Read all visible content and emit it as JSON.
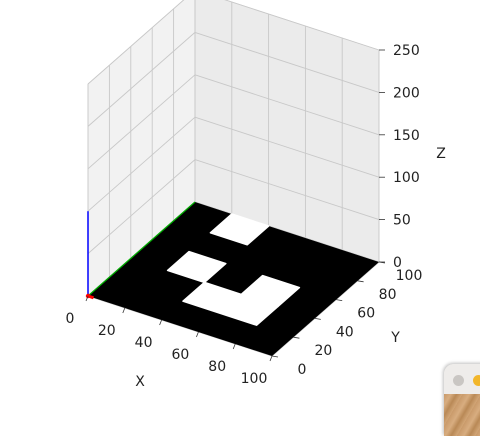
{
  "chart_data": {
    "type": "3d-surface-image",
    "xlabel": "X",
    "ylabel": "Y",
    "zlabel": "Z",
    "xlim": [
      0,
      100
    ],
    "ylim": [
      0,
      100
    ],
    "zlim": [
      0,
      250
    ],
    "xticks": [
      "0",
      "20",
      "40",
      "60",
      "80",
      "100"
    ],
    "yticks": [
      "0",
      "20",
      "40",
      "60",
      "80",
      "100"
    ],
    "zticks": [
      "0",
      "50",
      "100",
      "150",
      "200",
      "250"
    ],
    "grid": true,
    "image_plane": {
      "z": 0,
      "x_range": [
        0,
        100
      ],
      "y_range": [
        0,
        100
      ],
      "color": "#000000",
      "white_regions": [
        {
          "x": [
            20,
            40
          ],
          "y": [
            40,
            60
          ]
        },
        {
          "x": [
            40,
            80
          ],
          "y": [
            20,
            40
          ]
        },
        {
          "x": [
            60,
            80
          ],
          "y": [
            40,
            60
          ]
        },
        {
          "x": [
            20,
            40
          ],
          "y": [
            80,
            100
          ]
        }
      ],
      "white_color": "#ffffff"
    },
    "origin_frame": {
      "x_axis_color": "#ff0000",
      "y_axis_color": "#00aa00",
      "z_axis_color": "#0000ff",
      "length": 100
    }
  },
  "window_corner": {
    "close_color": "#c9c6c3",
    "minimize_color": "#f2b62a"
  }
}
